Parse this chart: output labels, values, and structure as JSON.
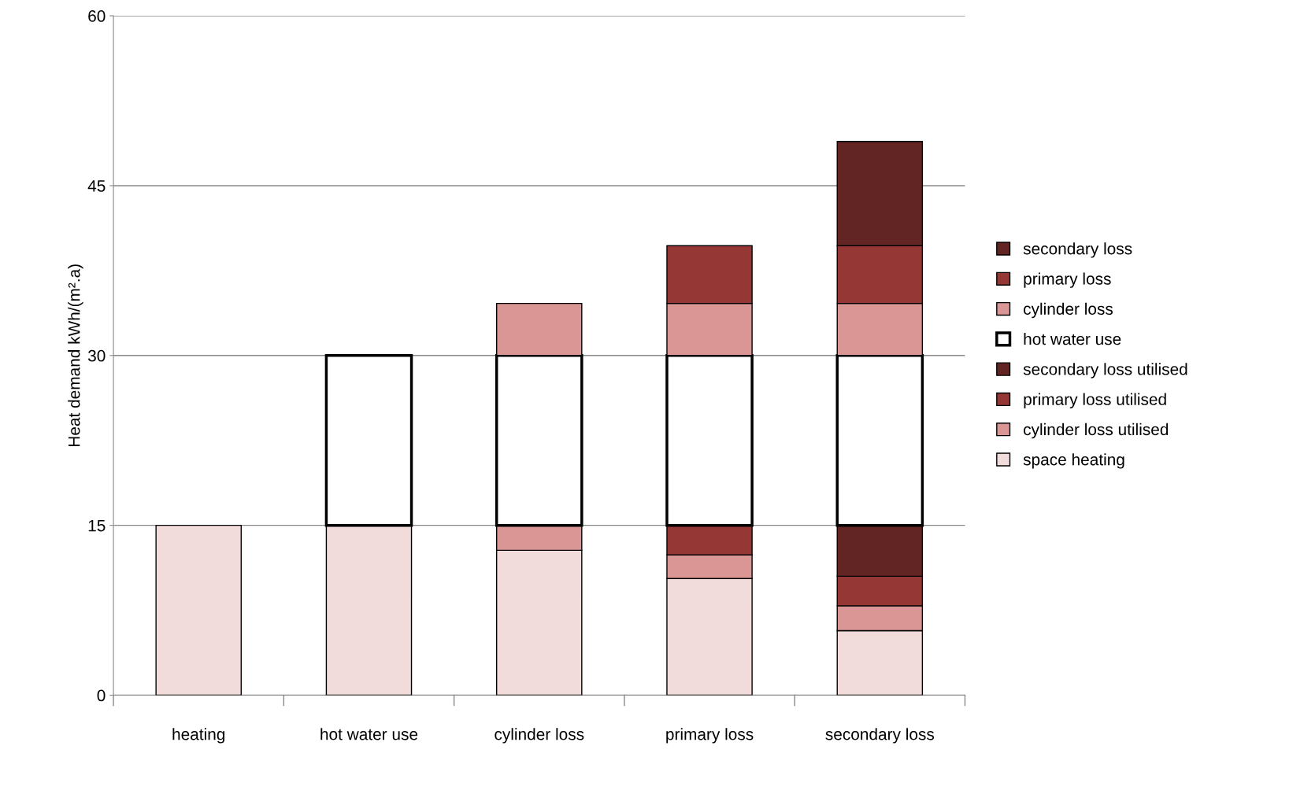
{
  "chart_data": {
    "type": "bar",
    "stacked": true,
    "ylabel": "Heat demand kWh/(m².a)",
    "categories": [
      "heating",
      "hot water use",
      "cylinder loss",
      "primary loss",
      "secondary loss"
    ],
    "series": [
      {
        "name": "space heating",
        "color": "#f2dcdb",
        "values": [
          15,
          15,
          12.8,
          10.3,
          5.7
        ]
      },
      {
        "name": "cylinder loss utilised",
        "color": "#d99694",
        "values": [
          null,
          null,
          2.2,
          2.1,
          2.2
        ]
      },
      {
        "name": "primary loss utilised",
        "color": "#953735",
        "values": [
          null,
          null,
          null,
          2.6,
          2.6
        ]
      },
      {
        "name": "secondary loss utilised",
        "color": "#632523",
        "values": [
          null,
          null,
          null,
          null,
          4.5
        ]
      },
      {
        "name": "hot water use",
        "color": "#ffffff",
        "values": [
          null,
          15,
          15,
          15,
          15
        ]
      },
      {
        "name": "cylinder loss",
        "color": "#d99694",
        "values": [
          null,
          null,
          4.6,
          4.6,
          4.6
        ]
      },
      {
        "name": "primary loss",
        "color": "#953735",
        "values": [
          null,
          null,
          null,
          5.1,
          5.1
        ]
      },
      {
        "name": "secondary loss",
        "color": "#632523",
        "values": [
          null,
          null,
          null,
          null,
          9.2
        ]
      }
    ],
    "ylim": [
      0,
      60
    ],
    "yticks": [
      0,
      15,
      30,
      45,
      60
    ],
    "grid": "y",
    "legend": "right"
  }
}
